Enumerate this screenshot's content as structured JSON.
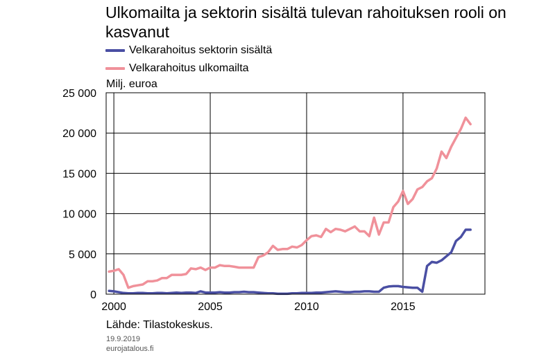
{
  "title": "Ulkomailta ja sektorin sisältä tulevan rahoituksen rooli on kasvanut",
  "unit_label": "Milj. euroa",
  "source": "Lähde: Tilastokeskus.",
  "date": "19.9.2019",
  "site": "eurojatalous.fi",
  "chart_data": {
    "type": "line",
    "title": "Ulkomailta ja sektorin sisältä tulevan rahoituksen rooli on kasvanut",
    "ylabel": "Milj. euroa",
    "xlim": [
      1999.6,
      2019.25
    ],
    "ylim": [
      0,
      25000
    ],
    "x_ticks": [
      2000,
      2005,
      2010,
      2015
    ],
    "y_ticks": [
      0,
      5000,
      10000,
      15000,
      20000,
      25000
    ],
    "x_tick_labels": [
      "2000",
      "2005",
      "2010",
      "2015"
    ],
    "y_tick_labels": [
      "0",
      "5 000",
      "10 000",
      "15 000",
      "20 000",
      "25 000"
    ],
    "grid": true,
    "legend_position": "top-left",
    "series": [
      {
        "name": "Velkarahoitus sektorin sisältä",
        "color": "#4a4fa3",
        "x": [
          1999.75,
          2000.0,
          2000.25,
          2000.5,
          2000.75,
          2001.0,
          2001.25,
          2001.5,
          2001.75,
          2002.0,
          2002.25,
          2002.5,
          2002.75,
          2003.0,
          2003.25,
          2003.5,
          2003.75,
          2004.0,
          2004.25,
          2004.5,
          2004.75,
          2005.0,
          2005.25,
          2005.5,
          2005.75,
          2006.0,
          2006.25,
          2006.5,
          2006.75,
          2007.0,
          2007.25,
          2007.5,
          2007.75,
          2008.0,
          2008.25,
          2008.5,
          2008.75,
          2009.0,
          2009.25,
          2009.5,
          2009.75,
          2010.0,
          2010.25,
          2010.5,
          2010.75,
          2011.0,
          2011.25,
          2011.5,
          2011.75,
          2012.0,
          2012.25,
          2012.5,
          2012.75,
          2013.0,
          2013.25,
          2013.5,
          2013.75,
          2014.0,
          2014.25,
          2014.5,
          2014.75,
          2015.0,
          2015.25,
          2015.5,
          2015.75,
          2016.0,
          2016.25,
          2016.5,
          2016.75,
          2017.0,
          2017.25,
          2017.5,
          2017.75,
          2018.0,
          2018.25,
          2018.5
        ],
        "values": [
          400,
          350,
          250,
          150,
          100,
          100,
          150,
          150,
          100,
          100,
          150,
          150,
          100,
          150,
          200,
          150,
          200,
          200,
          150,
          350,
          200,
          200,
          200,
          250,
          200,
          200,
          250,
          250,
          300,
          250,
          250,
          200,
          150,
          100,
          100,
          50,
          50,
          50,
          100,
          100,
          150,
          150,
          150,
          200,
          200,
          250,
          300,
          350,
          300,
          250,
          250,
          300,
          300,
          350,
          350,
          300,
          300,
          800,
          950,
          1000,
          1000,
          900,
          850,
          800,
          800,
          300,
          3500,
          4000,
          3900,
          4200,
          4700,
          5200,
          6600,
          7100,
          8000,
          8000
        ]
      },
      {
        "name": "Velkarahoitus ulkomailta",
        "color": "#f0919a",
        "x": [
          1999.75,
          2000.0,
          2000.25,
          2000.5,
          2000.75,
          2001.0,
          2001.25,
          2001.5,
          2001.75,
          2002.0,
          2002.25,
          2002.5,
          2002.75,
          2003.0,
          2003.25,
          2003.5,
          2003.75,
          2004.0,
          2004.25,
          2004.5,
          2004.75,
          2005.0,
          2005.25,
          2005.5,
          2005.75,
          2006.0,
          2006.25,
          2006.5,
          2006.75,
          2007.0,
          2007.25,
          2007.5,
          2007.75,
          2008.0,
          2008.25,
          2008.5,
          2008.75,
          2009.0,
          2009.25,
          2009.5,
          2009.75,
          2010.0,
          2010.25,
          2010.5,
          2010.75,
          2011.0,
          2011.25,
          2011.5,
          2011.75,
          2012.0,
          2012.25,
          2012.5,
          2012.75,
          2013.0,
          2013.25,
          2013.5,
          2013.75,
          2014.0,
          2014.25,
          2014.5,
          2014.75,
          2015.0,
          2015.25,
          2015.5,
          2015.75,
          2016.0,
          2016.25,
          2016.5,
          2016.75,
          2017.0,
          2017.25,
          2017.5,
          2017.75,
          2018.0,
          2018.25,
          2018.5
        ],
        "values": [
          2800,
          2900,
          3100,
          2400,
          800,
          1000,
          1100,
          1200,
          1600,
          1600,
          1700,
          2000,
          2000,
          2400,
          2400,
          2400,
          2500,
          3200,
          3100,
          3300,
          3000,
          3300,
          3300,
          3600,
          3500,
          3500,
          3400,
          3300,
          3300,
          3300,
          3300,
          4600,
          4800,
          5200,
          6000,
          5500,
          5600,
          5600,
          5900,
          5800,
          6100,
          6700,
          7200,
          7300,
          7100,
          8100,
          7700,
          8100,
          8000,
          7800,
          8100,
          8400,
          7800,
          7800,
          7200,
          9500,
          7400,
          8900,
          8900,
          10800,
          11500,
          12800,
          11200,
          11800,
          13000,
          13300,
          14000,
          14400,
          15600,
          17700,
          16900,
          18300,
          19400,
          20500,
          21900,
          21100
        ]
      }
    ]
  }
}
